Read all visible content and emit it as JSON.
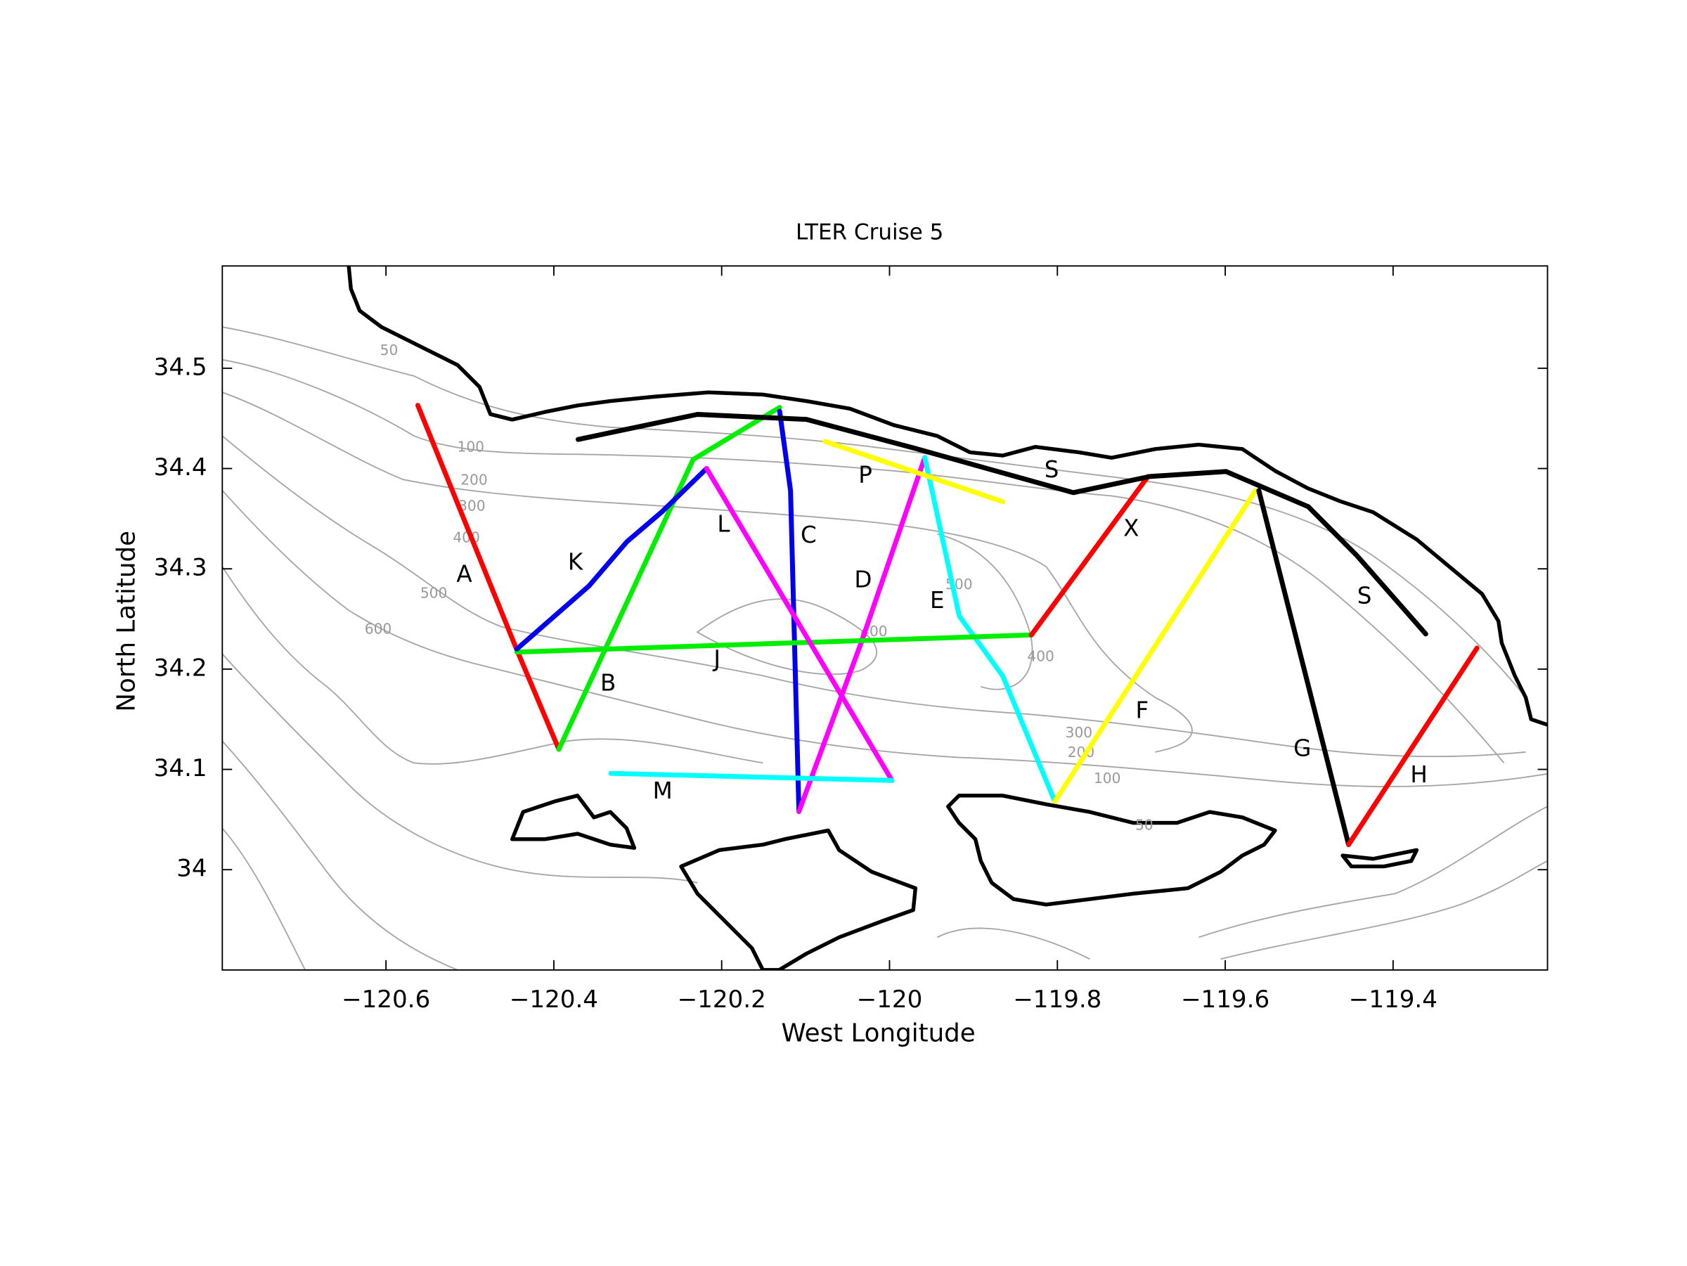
{
  "chart_data": {
    "type": "map",
    "title": "LTER Cruise 5",
    "x_label": "West Longitude",
    "y_label": "North Latitude",
    "xlim": [
      -120.795,
      -119.216
    ],
    "ylim": [
      33.9,
      34.602
    ],
    "xticks": [
      {
        "value": -120.6,
        "label": "−120.6"
      },
      {
        "value": -120.4,
        "label": "−120.4"
      },
      {
        "value": -120.2,
        "label": "−120.2"
      },
      {
        "value": -120,
        "label": "−120"
      },
      {
        "value": -119.8,
        "label": "−119.8"
      },
      {
        "value": -119.6,
        "label": "−119.6"
      },
      {
        "value": -119.4,
        "label": "−119.4"
      }
    ],
    "yticks": [
      34,
      34.1,
      34.2,
      34.3,
      34.4,
      34.5
    ],
    "contour_labels": [
      50,
      100,
      200,
      300,
      400,
      500,
      600,
      500,
      400,
      400,
      300,
      200,
      100,
      50
    ],
    "series": [
      {
        "name": "A",
        "color": "#ff0000",
        "x": [
          -120.562,
          -120.444,
          -120.394
        ],
        "y": [
          34.463,
          34.219,
          34.12
        ]
      },
      {
        "name": "B",
        "color": "#00ee00",
        "x": [
          -120.394,
          -120.234,
          -120.131
        ],
        "y": [
          34.12,
          34.409,
          34.461
        ]
      },
      {
        "name": "C",
        "color": "#0000ee",
        "x": [
          -120.131,
          -120.118,
          -120.108
        ],
        "y": [
          34.457,
          34.378,
          34.058
        ]
      },
      {
        "name": "D",
        "color": "#ff00ff",
        "x": [
          -120.108,
          -120.034,
          -119.958
        ],
        "y": [
          34.058,
          34.226,
          34.411
        ]
      },
      {
        "name": "E",
        "color": "#00ffff",
        "x": [
          -119.958,
          -119.917,
          -119.865,
          -119.803
        ],
        "y": [
          34.411,
          34.253,
          34.193,
          34.068
        ]
      },
      {
        "name": "F",
        "color": "#ffff00",
        "x": [
          -119.803,
          -119.564
        ],
        "y": [
          34.068,
          34.378
        ]
      },
      {
        "name": "G",
        "color": "#000000",
        "x": [
          -119.56,
          -119.453
        ],
        "y": [
          34.378,
          34.025
        ]
      },
      {
        "name": "H",
        "color": "#ff0000",
        "x": [
          -119.453,
          -119.3
        ],
        "y": [
          34.025,
          34.221
        ]
      },
      {
        "name": "J",
        "color": "#00ee00",
        "x": [
          -120.444,
          -119.831
        ],
        "y": [
          34.217,
          34.234
        ]
      },
      {
        "name": "K",
        "color": "#0000ee",
        "x": [
          -120.444,
          -120.358,
          -120.313,
          -120.271,
          -120.218
        ],
        "y": [
          34.22,
          34.283,
          34.327,
          34.357,
          34.4
        ]
      },
      {
        "name": "L",
        "color": "#ff00ff",
        "x": [
          -120.218,
          -119.997
        ],
        "y": [
          34.4,
          34.089
        ]
      },
      {
        "name": "M",
        "color": "#00ffff",
        "x": [
          -120.332,
          -119.997
        ],
        "y": [
          34.096,
          34.089
        ]
      },
      {
        "name": "P",
        "color": "#ffff00",
        "x": [
          -120.077,
          -119.865
        ],
        "y": [
          34.427,
          34.367
        ]
      },
      {
        "name": "X",
        "color": "#ff0000",
        "x": [
          -119.831,
          -119.692
        ],
        "y": [
          34.234,
          34.392
        ]
      },
      {
        "name": "S",
        "color": "#000000",
        "x": [
          -120.371,
          -120.229,
          -120.099,
          -119.969,
          -119.781,
          -119.69,
          -119.599,
          -119.501,
          -119.443,
          -119.361
        ],
        "y": [
          34.429,
          34.454,
          34.449,
          34.42,
          34.376,
          34.392,
          34.397,
          34.362,
          34.313,
          34.235
        ]
      }
    ]
  }
}
